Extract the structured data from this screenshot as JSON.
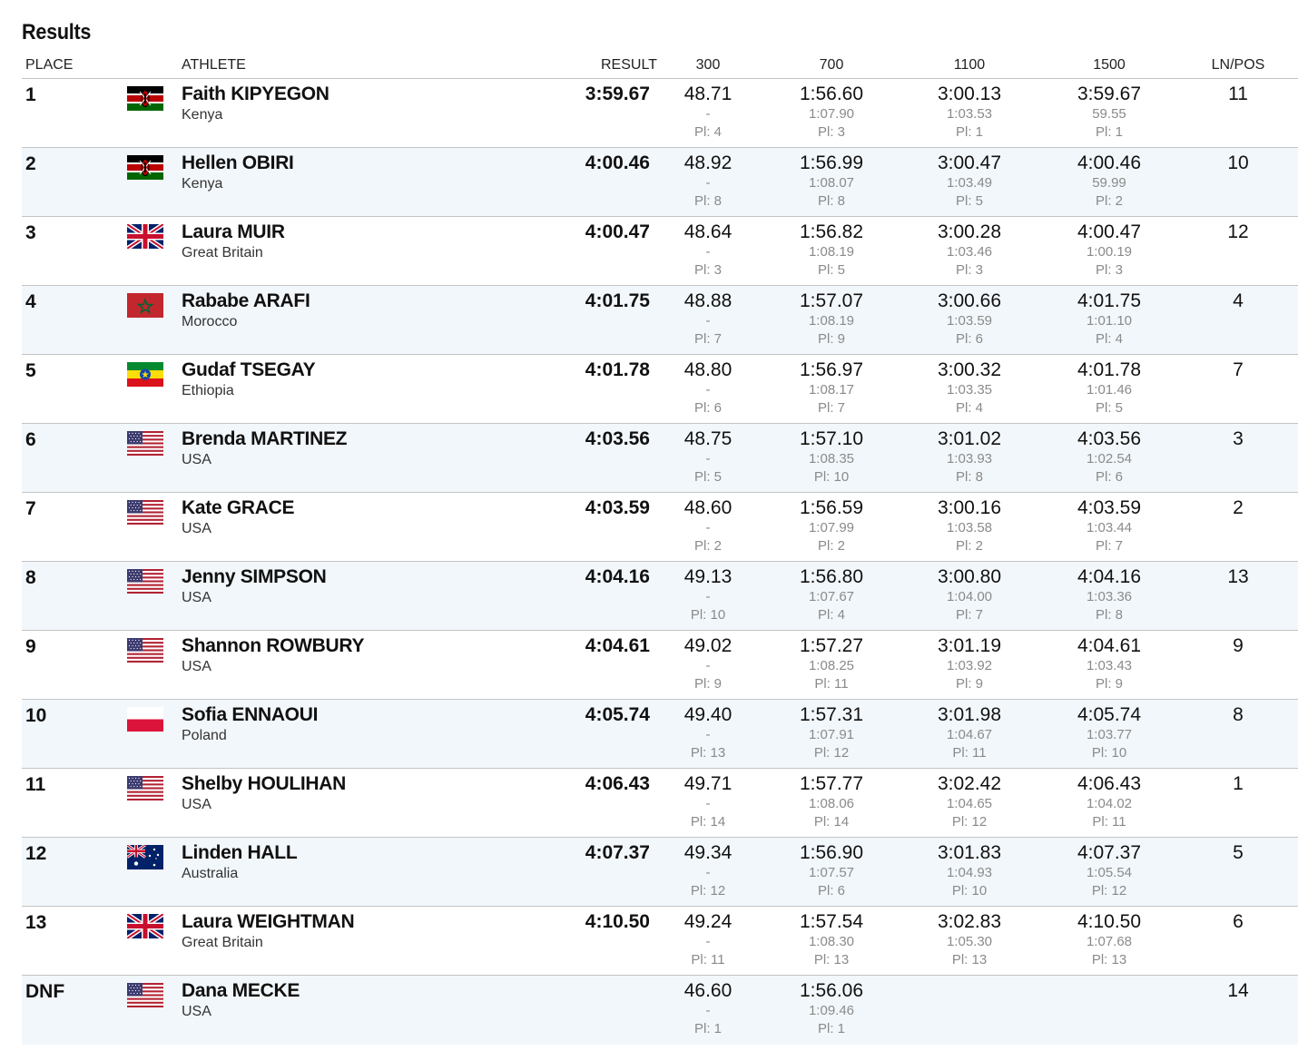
{
  "page": {
    "title": "Results"
  },
  "header": {
    "place": "PLACE",
    "athlete": "ATHLETE",
    "result": "RESULT",
    "splits": [
      "300",
      "700",
      "1100",
      "1500"
    ],
    "lnpos": "LN/POS"
  },
  "rows": [
    {
      "place": "1",
      "name": "Faith KIPYEGON",
      "country": "Kenya",
      "flag": "kenya-flag",
      "result": "3:59.67",
      "splits": [
        {
          "t": "48.71",
          "d": "-",
          "p": "Pl: 4"
        },
        {
          "t": "1:56.60",
          "d": "1:07.90",
          "p": "Pl: 3"
        },
        {
          "t": "3:00.13",
          "d": "1:03.53",
          "p": "Pl: 1"
        },
        {
          "t": "3:59.67",
          "d": "59.55",
          "p": "Pl: 1"
        }
      ],
      "lnpos": "11"
    },
    {
      "place": "2",
      "name": "Hellen OBIRI",
      "country": "Kenya",
      "flag": "kenya-flag",
      "result": "4:00.46",
      "splits": [
        {
          "t": "48.92",
          "d": "-",
          "p": "Pl: 8"
        },
        {
          "t": "1:56.99",
          "d": "1:08.07",
          "p": "Pl: 8"
        },
        {
          "t": "3:00.47",
          "d": "1:03.49",
          "p": "Pl: 5"
        },
        {
          "t": "4:00.46",
          "d": "59.99",
          "p": "Pl: 2"
        }
      ],
      "lnpos": "10"
    },
    {
      "place": "3",
      "name": "Laura MUIR",
      "country": "Great Britain",
      "flag": "uk-flag",
      "result": "4:00.47",
      "splits": [
        {
          "t": "48.64",
          "d": "-",
          "p": "Pl: 3"
        },
        {
          "t": "1:56.82",
          "d": "1:08.19",
          "p": "Pl: 5"
        },
        {
          "t": "3:00.28",
          "d": "1:03.46",
          "p": "Pl: 3"
        },
        {
          "t": "4:00.47",
          "d": "1:00.19",
          "p": "Pl: 3"
        }
      ],
      "lnpos": "12"
    },
    {
      "place": "4",
      "name": "Rababe ARAFI",
      "country": "Morocco",
      "flag": "morocco-flag",
      "result": "4:01.75",
      "splits": [
        {
          "t": "48.88",
          "d": "-",
          "p": "Pl: 7"
        },
        {
          "t": "1:57.07",
          "d": "1:08.19",
          "p": "Pl: 9"
        },
        {
          "t": "3:00.66",
          "d": "1:03.59",
          "p": "Pl: 6"
        },
        {
          "t": "4:01.75",
          "d": "1:01.10",
          "p": "Pl: 4"
        }
      ],
      "lnpos": "4"
    },
    {
      "place": "5",
      "name": "Gudaf TSEGAY",
      "country": "Ethiopia",
      "flag": "ethiopia-flag",
      "result": "4:01.78",
      "splits": [
        {
          "t": "48.80",
          "d": "-",
          "p": "Pl: 6"
        },
        {
          "t": "1:56.97",
          "d": "1:08.17",
          "p": "Pl: 7"
        },
        {
          "t": "3:00.32",
          "d": "1:03.35",
          "p": "Pl: 4"
        },
        {
          "t": "4:01.78",
          "d": "1:01.46",
          "p": "Pl: 5"
        }
      ],
      "lnpos": "7"
    },
    {
      "place": "6",
      "name": "Brenda MARTINEZ",
      "country": "USA",
      "flag": "usa-flag",
      "result": "4:03.56",
      "splits": [
        {
          "t": "48.75",
          "d": "-",
          "p": "Pl: 5"
        },
        {
          "t": "1:57.10",
          "d": "1:08.35",
          "p": "Pl: 10"
        },
        {
          "t": "3:01.02",
          "d": "1:03.93",
          "p": "Pl: 8"
        },
        {
          "t": "4:03.56",
          "d": "1:02.54",
          "p": "Pl: 6"
        }
      ],
      "lnpos": "3"
    },
    {
      "place": "7",
      "name": "Kate GRACE",
      "country": "USA",
      "flag": "usa-flag",
      "result": "4:03.59",
      "splits": [
        {
          "t": "48.60",
          "d": "-",
          "p": "Pl: 2"
        },
        {
          "t": "1:56.59",
          "d": "1:07.99",
          "p": "Pl: 2"
        },
        {
          "t": "3:00.16",
          "d": "1:03.58",
          "p": "Pl: 2"
        },
        {
          "t": "4:03.59",
          "d": "1:03.44",
          "p": "Pl: 7"
        }
      ],
      "lnpos": "2"
    },
    {
      "place": "8",
      "name": "Jenny SIMPSON",
      "country": "USA",
      "flag": "usa-flag",
      "result": "4:04.16",
      "splits": [
        {
          "t": "49.13",
          "d": "-",
          "p": "Pl: 10"
        },
        {
          "t": "1:56.80",
          "d": "1:07.67",
          "p": "Pl: 4"
        },
        {
          "t": "3:00.80",
          "d": "1:04.00",
          "p": "Pl: 7"
        },
        {
          "t": "4:04.16",
          "d": "1:03.36",
          "p": "Pl: 8"
        }
      ],
      "lnpos": "13"
    },
    {
      "place": "9",
      "name": "Shannon ROWBURY",
      "country": "USA",
      "flag": "usa-flag",
      "result": "4:04.61",
      "splits": [
        {
          "t": "49.02",
          "d": "-",
          "p": "Pl: 9"
        },
        {
          "t": "1:57.27",
          "d": "1:08.25",
          "p": "Pl: 11"
        },
        {
          "t": "3:01.19",
          "d": "1:03.92",
          "p": "Pl: 9"
        },
        {
          "t": "4:04.61",
          "d": "1:03.43",
          "p": "Pl: 9"
        }
      ],
      "lnpos": "9"
    },
    {
      "place": "10",
      "name": "Sofia ENNAOUI",
      "country": "Poland",
      "flag": "poland-flag",
      "result": "4:05.74",
      "splits": [
        {
          "t": "49.40",
          "d": "-",
          "p": "Pl: 13"
        },
        {
          "t": "1:57.31",
          "d": "1:07.91",
          "p": "Pl: 12"
        },
        {
          "t": "3:01.98",
          "d": "1:04.67",
          "p": "Pl: 11"
        },
        {
          "t": "4:05.74",
          "d": "1:03.77",
          "p": "Pl: 10"
        }
      ],
      "lnpos": "8"
    },
    {
      "place": "11",
      "name": "Shelby HOULIHAN",
      "country": "USA",
      "flag": "usa-flag",
      "result": "4:06.43",
      "splits": [
        {
          "t": "49.71",
          "d": "-",
          "p": "Pl: 14"
        },
        {
          "t": "1:57.77",
          "d": "1:08.06",
          "p": "Pl: 14"
        },
        {
          "t": "3:02.42",
          "d": "1:04.65",
          "p": "Pl: 12"
        },
        {
          "t": "4:06.43",
          "d": "1:04.02",
          "p": "Pl: 11"
        }
      ],
      "lnpos": "1"
    },
    {
      "place": "12",
      "name": "Linden HALL",
      "country": "Australia",
      "flag": "australia-flag",
      "result": "4:07.37",
      "splits": [
        {
          "t": "49.34",
          "d": "-",
          "p": "Pl: 12"
        },
        {
          "t": "1:56.90",
          "d": "1:07.57",
          "p": "Pl: 6"
        },
        {
          "t": "3:01.83",
          "d": "1:04.93",
          "p": "Pl: 10"
        },
        {
          "t": "4:07.37",
          "d": "1:05.54",
          "p": "Pl: 12"
        }
      ],
      "lnpos": "5"
    },
    {
      "place": "13",
      "name": "Laura WEIGHTMAN",
      "country": "Great Britain",
      "flag": "uk-flag",
      "result": "4:10.50",
      "splits": [
        {
          "t": "49.24",
          "d": "-",
          "p": "Pl: 11"
        },
        {
          "t": "1:57.54",
          "d": "1:08.30",
          "p": "Pl: 13"
        },
        {
          "t": "3:02.83",
          "d": "1:05.30",
          "p": "Pl: 13"
        },
        {
          "t": "4:10.50",
          "d": "1:07.68",
          "p": "Pl: 13"
        }
      ],
      "lnpos": "6"
    },
    {
      "place": "DNF",
      "name": "Dana MECKE",
      "country": "USA",
      "flag": "usa-flag",
      "result": "",
      "splits": [
        {
          "t": "46.60",
          "d": "-",
          "p": "Pl: 1"
        },
        {
          "t": "1:56.06",
          "d": "1:09.46",
          "p": "Pl: 1"
        },
        null,
        null
      ],
      "lnpos": "14"
    }
  ]
}
